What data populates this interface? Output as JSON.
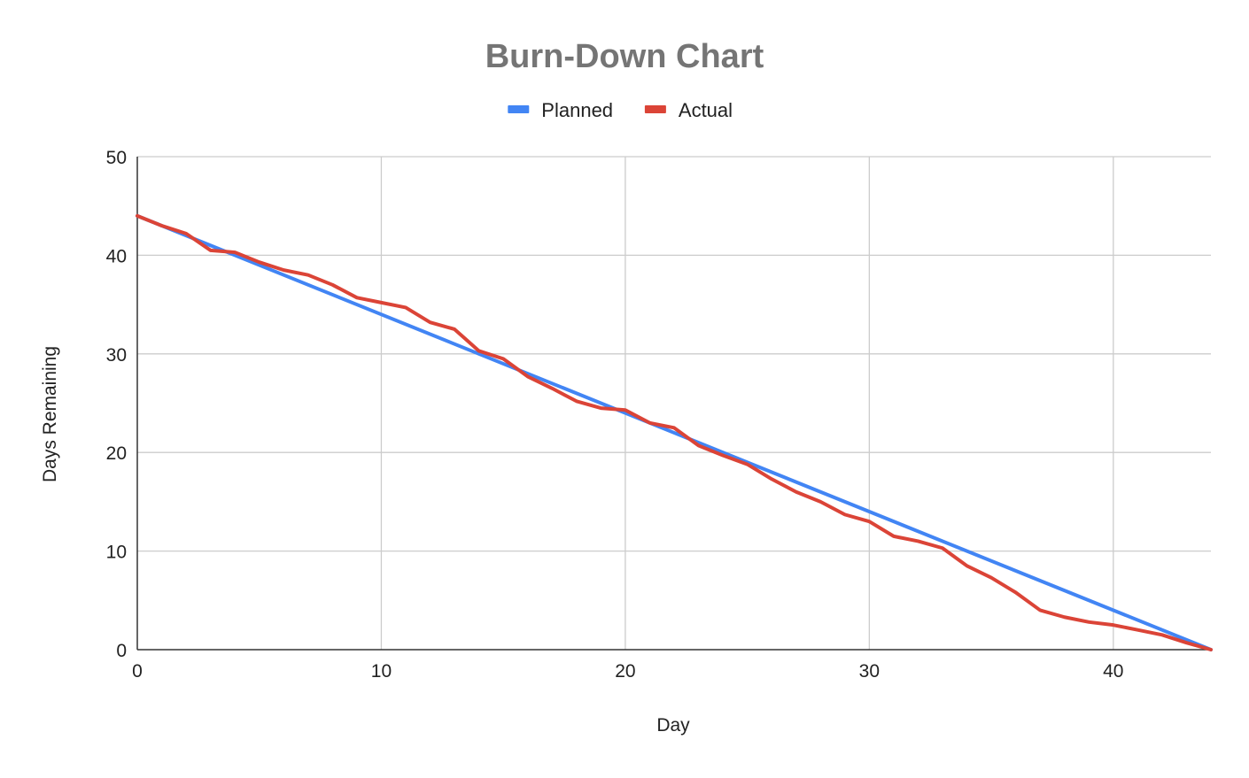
{
  "chart_data": {
    "type": "line",
    "title": "Burn-Down Chart",
    "xlabel": "Day",
    "ylabel": "Days Remaining",
    "xlim": [
      0,
      44
    ],
    "ylim": [
      0,
      50
    ],
    "xticks": [
      0,
      10,
      20,
      30,
      40
    ],
    "yticks": [
      0,
      10,
      20,
      30,
      40,
      50
    ],
    "grid": true,
    "legend_position": "top",
    "series": [
      {
        "name": "Planned",
        "color": "#4285F4",
        "points": [
          [
            0,
            44
          ],
          [
            44,
            0
          ]
        ]
      },
      {
        "name": "Actual",
        "color": "#DB4437",
        "points": [
          [
            0,
            44
          ],
          [
            1,
            43
          ],
          [
            2,
            42.2
          ],
          [
            3,
            40.5
          ],
          [
            4,
            40.3
          ],
          [
            5,
            39.3
          ],
          [
            6,
            38.5
          ],
          [
            7,
            38
          ],
          [
            8,
            37
          ],
          [
            9,
            35.7
          ],
          [
            10,
            35.2
          ],
          [
            11,
            34.7
          ],
          [
            12,
            33.2
          ],
          [
            13,
            32.5
          ],
          [
            14,
            30.3
          ],
          [
            15,
            29.5
          ],
          [
            16,
            27.7
          ],
          [
            17,
            26.5
          ],
          [
            18,
            25.2
          ],
          [
            19,
            24.5
          ],
          [
            20,
            24.3
          ],
          [
            21,
            23
          ],
          [
            22,
            22.5
          ],
          [
            23,
            20.7
          ],
          [
            24,
            19.7
          ],
          [
            25,
            18.8
          ],
          [
            26,
            17.3
          ],
          [
            27,
            16
          ],
          [
            28,
            15
          ],
          [
            29,
            13.7
          ],
          [
            30,
            13
          ],
          [
            31,
            11.5
          ],
          [
            32,
            11
          ],
          [
            33,
            10.3
          ],
          [
            34,
            8.5
          ],
          [
            35,
            7.3
          ],
          [
            36,
            5.8
          ],
          [
            37,
            4
          ],
          [
            38,
            3.3
          ],
          [
            39,
            2.8
          ],
          [
            40,
            2.5
          ],
          [
            41,
            2
          ],
          [
            42,
            1.5
          ],
          [
            43,
            0.7
          ],
          [
            44,
            0
          ]
        ]
      }
    ]
  }
}
